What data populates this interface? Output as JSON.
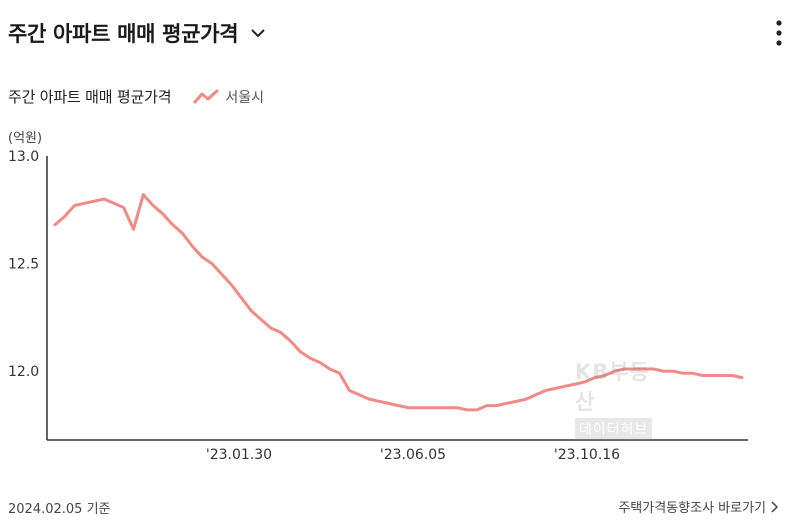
{
  "header": {
    "title": "주간 아파트 매매 평균가격",
    "dropdown_icon": "chevron-down-icon",
    "menu_icon": "more-vertical-icon"
  },
  "legend": {
    "title": "주간 아파트 매매 평균가격",
    "series_label": "서울시",
    "series_color": "#f08a87"
  },
  "watermark": {
    "top": "KB부동산",
    "bottom": "데이터허브"
  },
  "footer": {
    "date": "2024.02.05 기준",
    "link_label": "주택가격동향조사 바로가기"
  },
  "chart_data": {
    "type": "line",
    "ylabel": "(억원)",
    "ylim": [
      11.68,
      13.0
    ],
    "yticks": [
      "13.0",
      "12.5",
      "12.0"
    ],
    "xticks": [
      "'23.01.30",
      "'23.06.05",
      "'23.10.16"
    ],
    "series": [
      {
        "name": "서울시",
        "color": "#f08a87",
        "values": [
          12.68,
          12.72,
          12.77,
          12.78,
          12.79,
          12.8,
          12.78,
          12.76,
          12.66,
          12.82,
          12.77,
          12.73,
          12.68,
          12.64,
          12.58,
          12.53,
          12.5,
          12.45,
          12.4,
          12.34,
          12.28,
          12.24,
          12.2,
          12.18,
          12.14,
          12.09,
          12.06,
          12.04,
          12.01,
          11.99,
          11.91,
          11.89,
          11.87,
          11.86,
          11.85,
          11.84,
          11.83,
          11.83,
          11.83,
          11.83,
          11.83,
          11.83,
          11.82,
          11.82,
          11.84,
          11.84,
          11.85,
          11.86,
          11.87,
          11.89,
          11.91,
          11.92,
          11.93,
          11.94,
          11.95,
          11.97,
          11.98,
          12.0,
          12.01,
          12.01,
          12.01,
          12.01,
          12.0,
          12.0,
          11.99,
          11.99,
          11.98,
          11.98,
          11.98,
          11.98,
          11.97
        ]
      }
    ]
  }
}
